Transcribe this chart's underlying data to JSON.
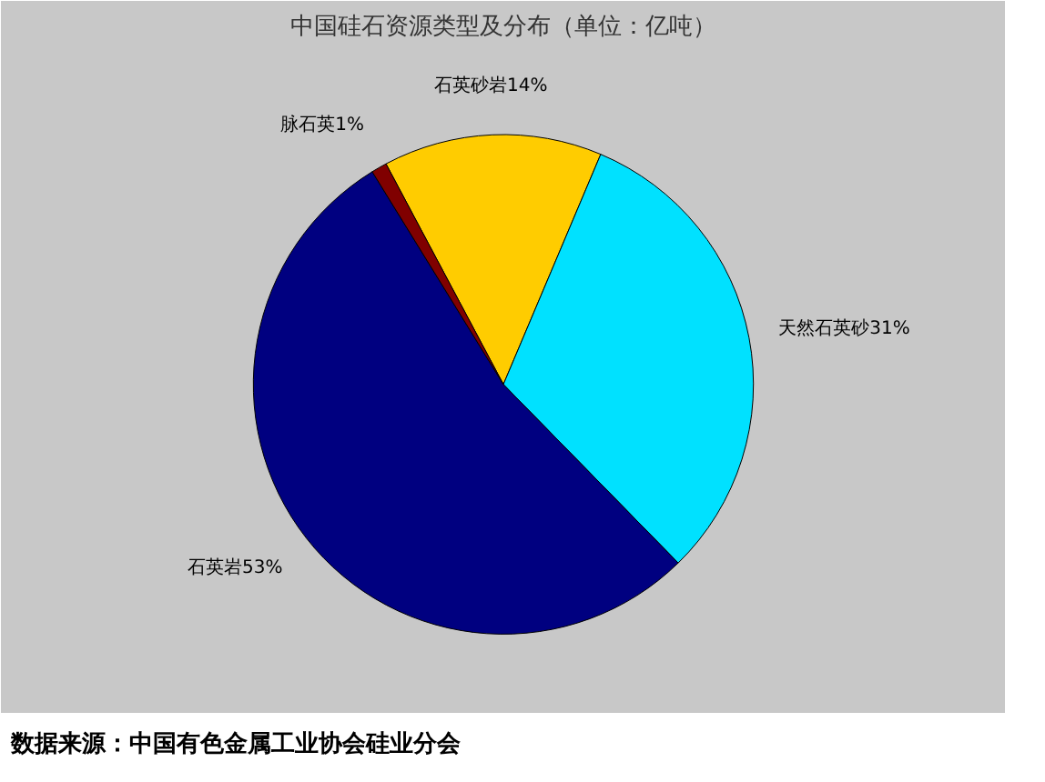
{
  "chart_data": {
    "type": "pie",
    "title": "中国硅石资源类型及分布（单位：亿吨）",
    "categories": [
      "石英砂岩",
      "天然石英砂",
      "石英岩",
      "脉石英"
    ],
    "values": [
      14,
      31,
      53,
      1
    ],
    "colors": [
      "#ffcc00",
      "#00e1ff",
      "#000080",
      "#800000"
    ],
    "value_labels": [
      "14%",
      "31%",
      "53%",
      "1%"
    ],
    "annotations": [
      "数据来源：中国有色金属工业协会硅业分会"
    ]
  }
}
